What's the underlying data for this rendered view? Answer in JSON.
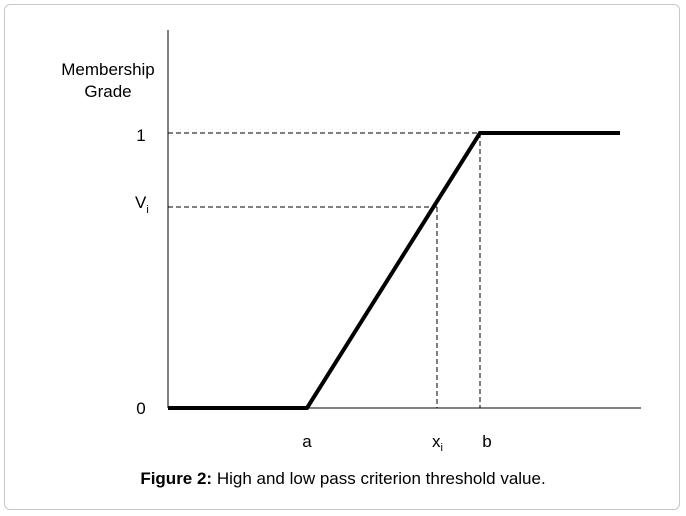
{
  "y_axis_label": [
    "Membership",
    "Grade"
  ],
  "y_ticks": {
    "one": "1",
    "v": "V",
    "v_sub": "i",
    "zero": "0"
  },
  "x_ticks": {
    "a": "a",
    "x": "x",
    "x_sub": "i",
    "b": "b"
  },
  "caption": {
    "label": "Figure 2:",
    "text": " High and low pass criterion threshold value."
  },
  "curve": {
    "points": [
      {
        "x": "0",
        "y": 0
      },
      {
        "x": "a",
        "y": 0
      },
      {
        "x": "b",
        "y": 1
      },
      {
        "x": "end",
        "y": 1
      }
    ],
    "color": "#000000"
  }
}
